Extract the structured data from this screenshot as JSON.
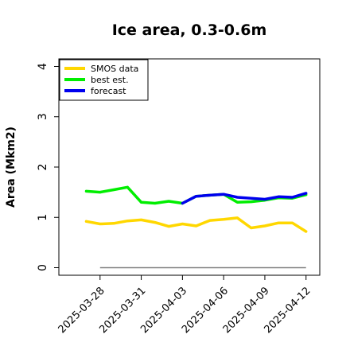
{
  "chart_data": {
    "type": "line",
    "title": "Ice area, 0.3-0.6m",
    "xlabel": "",
    "ylabel": "Area (Mkm2)",
    "ylim": [
      -0.15,
      4.15
    ],
    "yticks": [
      0,
      1,
      2,
      3,
      4
    ],
    "xlim": [
      "2025-03-25",
      "2025-04-13"
    ],
    "xticks": [
      "2025-03-28",
      "2025-03-31",
      "2025-04-03",
      "2025-04-06",
      "2025-04-09",
      "2025-04-12"
    ],
    "highlight_tick": "2025-04-03",
    "highlight_color": "#228b22",
    "grid": false,
    "legend": "top-left",
    "baseline": {
      "y": 0,
      "color": "#808080"
    },
    "series": [
      {
        "name": "SMOS data",
        "color": "#ffd700",
        "x": [
          "2025-03-27",
          "2025-03-28",
          "2025-03-29",
          "2025-03-30",
          "2025-03-31",
          "2025-04-01",
          "2025-04-02",
          "2025-04-03",
          "2025-04-04",
          "2025-04-05",
          "2025-04-06",
          "2025-04-07",
          "2025-04-08",
          "2025-04-09",
          "2025-04-10",
          "2025-04-11",
          "2025-04-12"
        ],
        "values": [
          0.92,
          0.87,
          0.88,
          0.93,
          0.95,
          0.9,
          0.82,
          0.87,
          0.83,
          0.94,
          0.96,
          0.99,
          0.79,
          0.83,
          0.89,
          0.89,
          0.72
        ]
      },
      {
        "name": "best est.",
        "color": "#00ee00",
        "x": [
          "2025-03-27",
          "2025-03-28",
          "2025-03-29",
          "2025-03-30",
          "2025-03-31",
          "2025-04-01",
          "2025-04-02",
          "2025-04-03",
          "2025-04-04",
          "2025-04-05",
          "2025-04-06",
          "2025-04-07",
          "2025-04-08",
          "2025-04-09",
          "2025-04-10",
          "2025-04-11",
          "2025-04-12"
        ],
        "values": [
          1.52,
          1.5,
          1.55,
          1.6,
          1.3,
          1.28,
          1.32,
          1.28,
          1.42,
          1.44,
          1.46,
          1.3,
          1.31,
          1.34,
          1.39,
          1.38,
          1.45
        ]
      },
      {
        "name": "forecast",
        "color": "#0000ee",
        "x": [
          "2025-04-03",
          "2025-04-04",
          "2025-04-05",
          "2025-04-06",
          "2025-04-07",
          "2025-04-08",
          "2025-04-09",
          "2025-04-10",
          "2025-04-11",
          "2025-04-12"
        ],
        "values": [
          1.28,
          1.42,
          1.44,
          1.46,
          1.4,
          1.38,
          1.36,
          1.41,
          1.4,
          1.48
        ]
      }
    ]
  }
}
